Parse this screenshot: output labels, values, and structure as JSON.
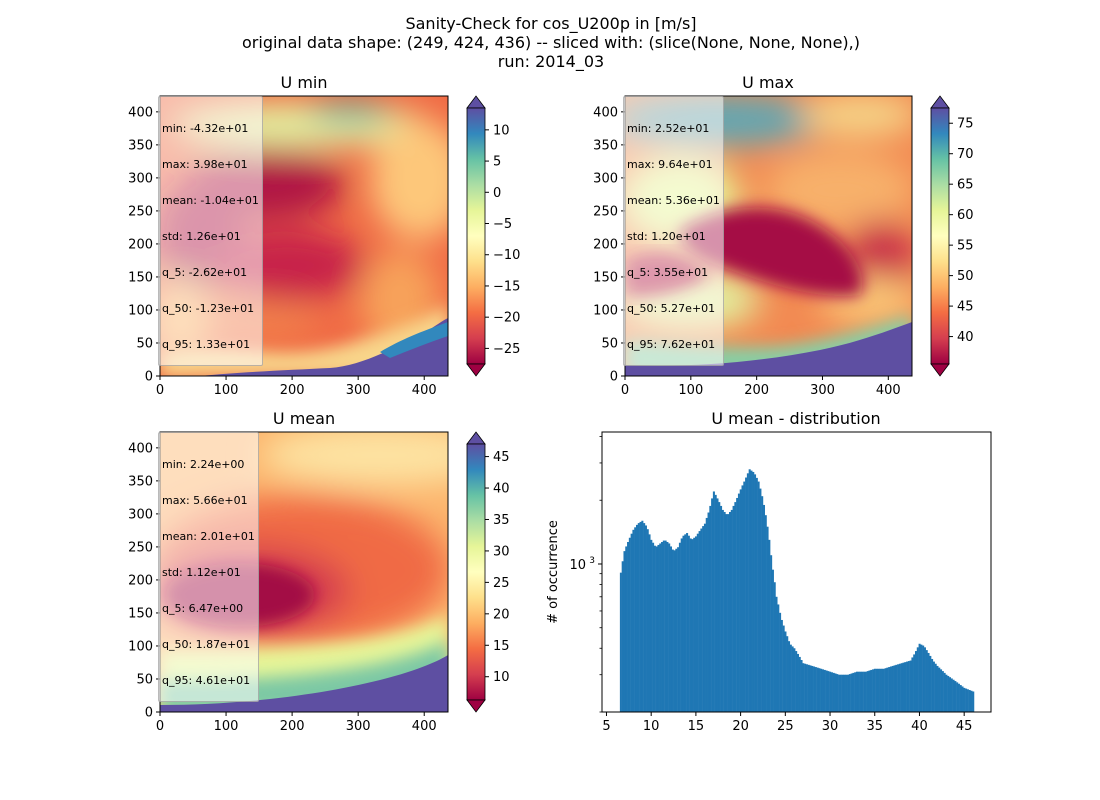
{
  "figure": {
    "title_lines": [
      "Sanity-Check for cos_U200p in [m/s]",
      "original data shape: (249, 424, 436) -- sliced with: (slice(None, None, None),)",
      "run: 2014_03"
    ]
  },
  "chart_data": [
    {
      "type": "heatmap",
      "title": "U min",
      "x_ticks": [
        0,
        100,
        200,
        300,
        400
      ],
      "y_ticks": [
        0,
        50,
        100,
        150,
        200,
        250,
        300,
        350,
        400
      ],
      "xlim": [
        0,
        436
      ],
      "ylim": [
        0,
        424
      ],
      "colorbar": {
        "colormap": "Spectral",
        "range": [
          -27.5,
          13.5
        ],
        "ticks": [
          -25,
          -20,
          -15,
          -10,
          -5,
          0,
          5,
          10
        ],
        "tick_labels": [
          "−25",
          "−20",
          "−15",
          "−10",
          "−5",
          "0",
          "5",
          "10"
        ],
        "extend": "both"
      },
      "stats_lines": [
        "min: -4.32e+01",
        "max: 3.98e+01",
        "mean: -1.04e+01",
        "std: 1.26e+01",
        "q_5: -2.62e+01",
        "q_50: -1.23e+01",
        "q_95: 1.33e+01"
      ]
    },
    {
      "type": "heatmap",
      "title": "U max",
      "x_ticks": [
        0,
        100,
        200,
        300,
        400
      ],
      "y_ticks": [
        0,
        50,
        100,
        150,
        200,
        250,
        300,
        350,
        400
      ],
      "xlim": [
        0,
        436
      ],
      "ylim": [
        0,
        424
      ],
      "colorbar": {
        "colormap": "Spectral",
        "range": [
          35.5,
          77.5
        ],
        "ticks": [
          40,
          45,
          50,
          55,
          60,
          65,
          70,
          75
        ],
        "tick_labels": [
          "40",
          "45",
          "50",
          "55",
          "60",
          "65",
          "70",
          "75"
        ],
        "extend": "both"
      },
      "stats_lines": [
        "min: 2.52e+01",
        "max: 9.64e+01",
        "mean: 5.36e+01",
        "std: 1.20e+01",
        "q_5: 3.55e+01",
        "q_50: 5.27e+01",
        "q_95: 7.62e+01"
      ]
    },
    {
      "type": "heatmap",
      "title": "U mean",
      "x_ticks": [
        0,
        100,
        200,
        300,
        400
      ],
      "y_ticks": [
        0,
        50,
        100,
        150,
        200,
        250,
        300,
        350,
        400
      ],
      "xlim": [
        0,
        436
      ],
      "ylim": [
        0,
        424
      ],
      "colorbar": {
        "colormap": "Spectral",
        "range": [
          6.3,
          47.0
        ],
        "ticks": [
          10,
          15,
          20,
          25,
          30,
          35,
          40,
          45
        ],
        "tick_labels": [
          "10",
          "15",
          "20",
          "25",
          "30",
          "35",
          "40",
          "45"
        ],
        "extend": "both"
      },
      "stats_lines": [
        "min: 2.24e+00",
        "max: 5.66e+01",
        "mean: 2.01e+01",
        "std: 1.12e+01",
        "q_5: 6.47e+00",
        "q_50: 1.87e+01",
        "q_95: 4.61e+01"
      ]
    },
    {
      "type": "bar",
      "title": "U mean - distribution",
      "xlabel": "",
      "ylabel": "# of occurrence",
      "yscale": "log",
      "xlim": [
        4.5,
        48.0
      ],
      "ylim": [
        200,
        4200
      ],
      "x_ticks": [
        5,
        10,
        15,
        20,
        25,
        30,
        35,
        40,
        45
      ],
      "y_ticks": [
        1000
      ],
      "y_tick_labels": [
        "10^3"
      ],
      "color": "#1f77b4",
      "bin_width": 0.2,
      "histogram": {
        "x": [
          6.5,
          7.0,
          7.5,
          8.0,
          8.5,
          9.0,
          9.5,
          10.0,
          10.5,
          11.0,
          11.5,
          12.0,
          12.5,
          13.0,
          13.5,
          14.0,
          14.5,
          15.0,
          15.5,
          16.0,
          16.5,
          17.0,
          17.5,
          18.0,
          18.5,
          19.0,
          19.5,
          20.0,
          20.5,
          21.0,
          21.5,
          22.0,
          22.5,
          23.0,
          23.5,
          24.0,
          24.5,
          25.0,
          25.5,
          26.0,
          27.0,
          28.0,
          29.0,
          30.0,
          31.0,
          32.0,
          33.0,
          34.0,
          35.0,
          36.0,
          37.0,
          38.0,
          39.0,
          39.5,
          40.0,
          40.5,
          41.0,
          41.5,
          42.0,
          43.0,
          44.0,
          45.0,
          46.0
        ],
        "counts": [
          850,
          1150,
          1300,
          1450,
          1550,
          1600,
          1500,
          1300,
          1200,
          1250,
          1300,
          1250,
          1150,
          1200,
          1350,
          1400,
          1300,
          1350,
          1450,
          1550,
          1800,
          2200,
          2000,
          1800,
          1700,
          1800,
          2000,
          2250,
          2500,
          2800,
          2700,
          2450,
          2000,
          1500,
          1000,
          700,
          560,
          480,
          420,
          400,
          340,
          330,
          320,
          310,
          300,
          300,
          310,
          310,
          320,
          320,
          330,
          340,
          350,
          380,
          420,
          410,
          380,
          350,
          330,
          300,
          280,
          260,
          250
        ]
      }
    }
  ]
}
